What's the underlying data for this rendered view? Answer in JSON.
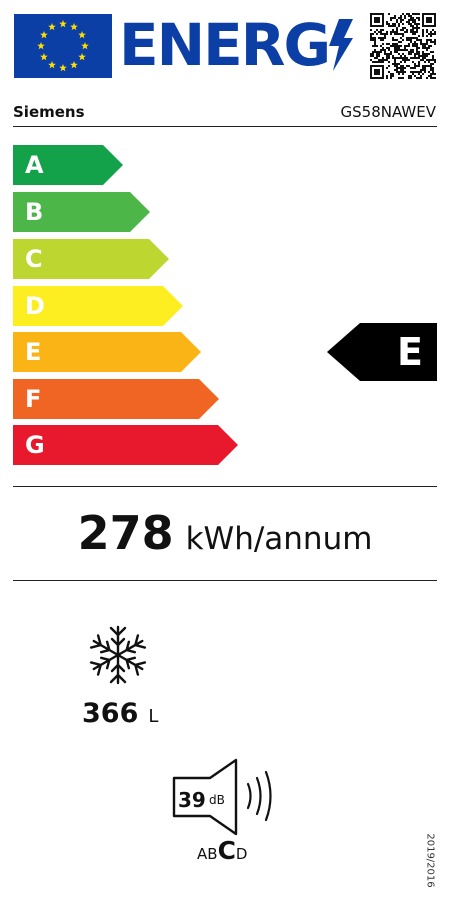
{
  "header": {
    "energy_word": "ENERG",
    "flag_icon": "eu-flag-icon",
    "bolt_icon": "lightning-bolt-icon",
    "qr_icon": "qr-code-icon",
    "colors": {
      "eu_blue": "#0c3fa6",
      "flag_star": "#ffdd00"
    }
  },
  "product": {
    "brand": "Siemens",
    "model": "GS58NAWEV"
  },
  "scale": [
    {
      "letter": "A",
      "color": "#13a14a"
    },
    {
      "letter": "B",
      "color": "#4cb748"
    },
    {
      "letter": "C",
      "color": "#bed630"
    },
    {
      "letter": "D",
      "color": "#fcee21"
    },
    {
      "letter": "E",
      "color": "#fbb416"
    },
    {
      "letter": "F",
      "color": "#f06523"
    },
    {
      "letter": "G",
      "color": "#e8192c"
    }
  ],
  "energy_class": {
    "letter": "E",
    "arrow_color": "#000000"
  },
  "consumption": {
    "value": "278",
    "unit": "kWh/annum"
  },
  "freezer": {
    "icon": "snowflake-icon",
    "volume": "366",
    "unit": "L"
  },
  "noise": {
    "icon": "speaker-icon",
    "value": "39",
    "unit": "dB",
    "classes": [
      "A",
      "B",
      "C",
      "D"
    ],
    "active_class": "C"
  },
  "regulation": "2019/2016"
}
